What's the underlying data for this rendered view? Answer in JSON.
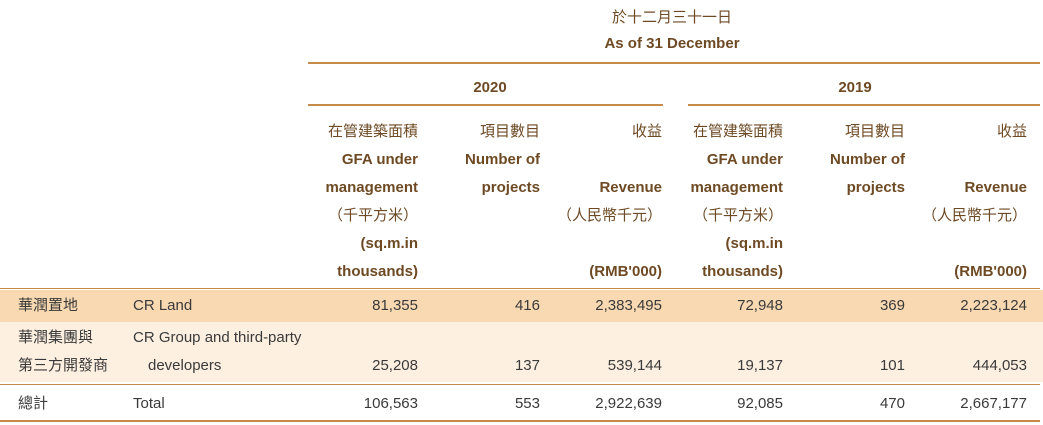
{
  "header": {
    "title_zh": "於十二月三十一日",
    "title_en": "As of 31 December"
  },
  "years": [
    {
      "year": "2020",
      "columns": [
        {
          "lines": [
            "在管建築面積",
            "GFA under",
            "management",
            "（千平方米）",
            "(sq.m.in",
            "thousands)"
          ]
        },
        {
          "lines": [
            "項目數目",
            "Number of",
            "projects"
          ]
        },
        {
          "lines": [
            "收益",
            "Revenue",
            "（人民幣千元）",
            "(RMB'000)"
          ]
        }
      ]
    },
    {
      "year": "2019",
      "columns": [
        {
          "lines": [
            "在管建築面積",
            "GFA under",
            "management",
            "（千平方米）",
            "(sq.m.in",
            "thousands)"
          ]
        },
        {
          "lines": [
            "項目數目",
            "Number of",
            "projects"
          ]
        },
        {
          "lines": [
            "收益",
            "Revenue",
            "（人民幣千元）",
            "(RMB'000)"
          ]
        }
      ]
    }
  ],
  "rows": [
    {
      "zh": [
        "華潤置地"
      ],
      "en": [
        "CR Land"
      ],
      "values": [
        "81,355",
        "416",
        "2,383,495",
        "72,948",
        "369",
        "2,223,124"
      ]
    },
    {
      "zh": [
        "華潤集團與",
        "第三方開發商"
      ],
      "en": [
        "CR Group and third-party",
        "developers"
      ],
      "values": [
        "25,208",
        "137",
        "539,144",
        "19,137",
        "101",
        "444,053"
      ]
    },
    {
      "zh": [
        "總計"
      ],
      "en": [
        "Total"
      ],
      "values": [
        "106,563",
        "553",
        "2,922,639",
        "92,085",
        "470",
        "2,667,177"
      ]
    }
  ]
}
